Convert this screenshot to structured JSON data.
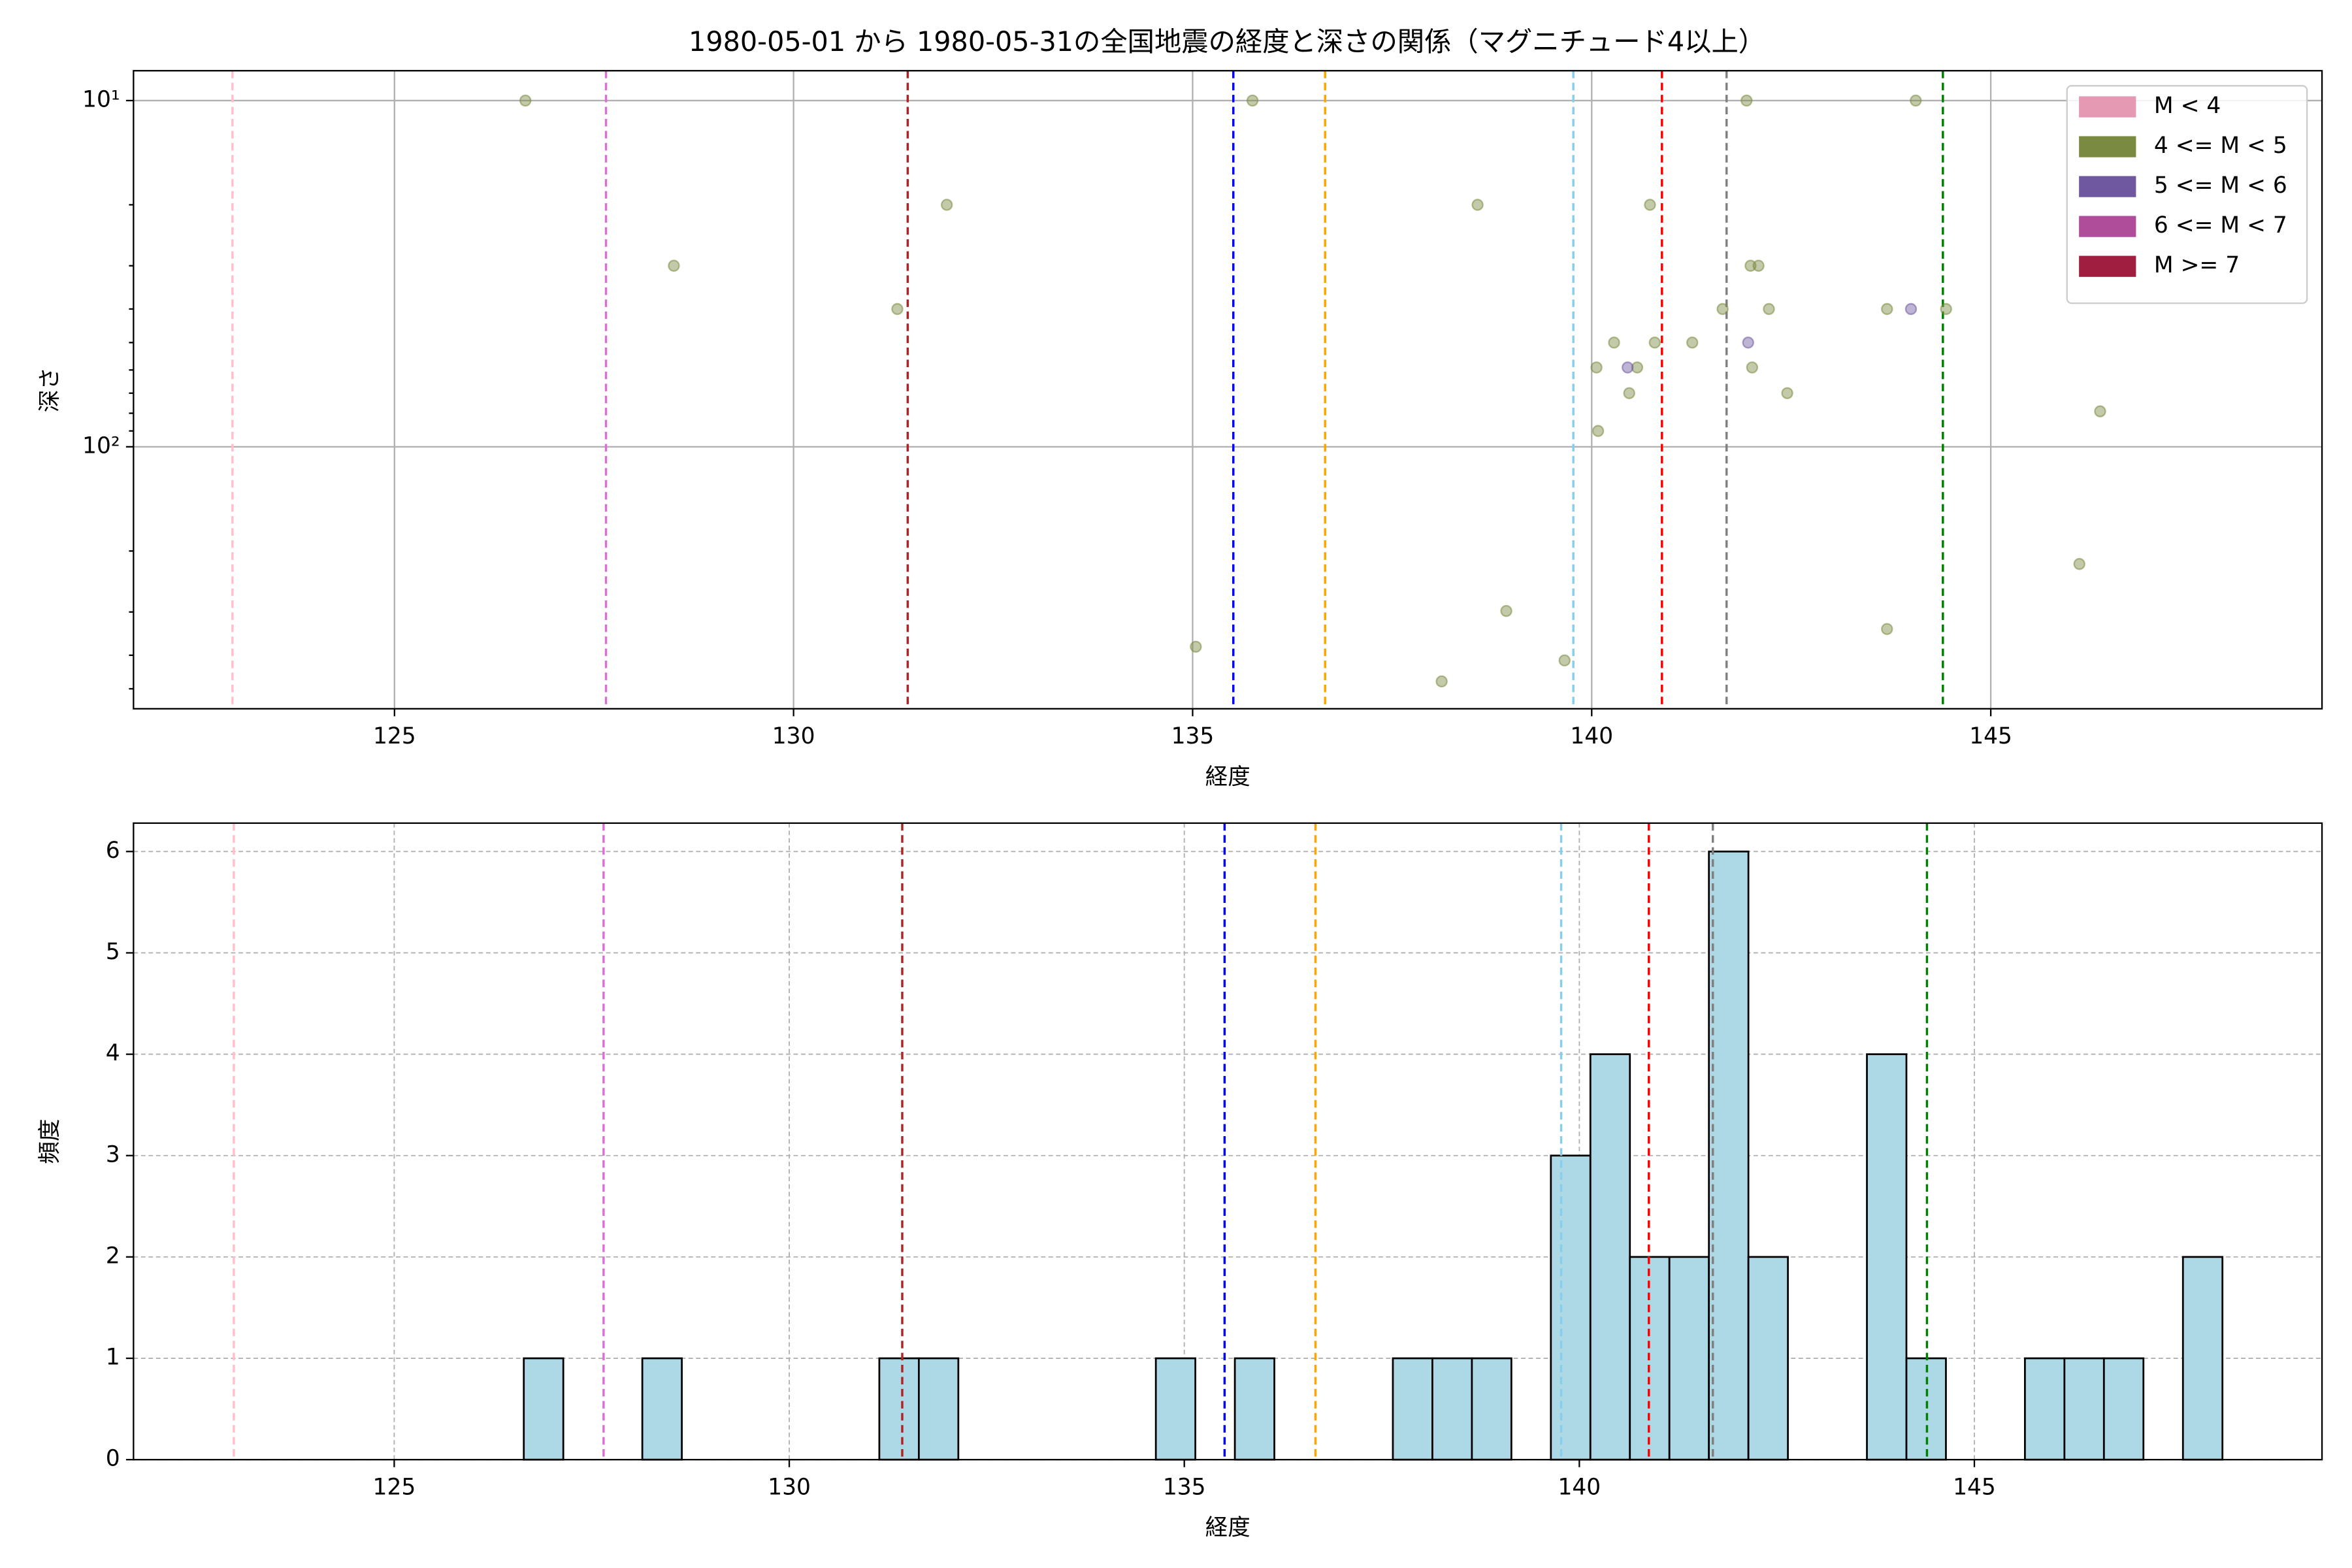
{
  "chart_data": [
    {
      "type": "scatter",
      "title": "1980-05-01 から 1980-05-31の全国地震の経度と深さの関係（マグニチュード4以上）",
      "xlabel": "経度",
      "ylabel": "深さ",
      "xlim": [
        121.73,
        149.15
      ],
      "xticks": [
        125,
        130,
        135,
        140,
        145
      ],
      "ylim": [
        8.2,
        571
      ],
      "yscale": "log",
      "yinverted": true,
      "yticks": [
        {
          "value": 10,
          "label": "10¹"
        },
        {
          "value": 100,
          "label": "10²"
        }
      ],
      "yminor_ticks": [
        20,
        30,
        40,
        50,
        60,
        70,
        80,
        90,
        200,
        300,
        400,
        500
      ],
      "grid": true,
      "legend": "upper right",
      "series": [
        {
          "name": "M < 4",
          "color": "#e699b2",
          "x": [],
          "y": []
        },
        {
          "name": "4 <= M < 5",
          "color": "#7a8a40",
          "x": [
            126.64,
            128.5,
            131.92,
            131.3,
            135.04,
            135.75,
            138.12,
            138.57,
            138.93,
            139.66,
            140.06,
            140.08,
            140.28,
            140.47,
            140.57,
            140.73,
            140.79,
            141.26,
            141.64,
            141.94,
            141.99,
            142.09,
            142.01,
            142.22,
            142.45,
            143.7,
            143.7,
            144.06,
            144.44,
            146.11,
            146.37
          ],
          "y": [
            10,
            30,
            20,
            40,
            378,
            10,
            476,
            20,
            298,
            414,
            59,
            90,
            50,
            70,
            59,
            20,
            50,
            50,
            40,
            10,
            30,
            30,
            59,
            40,
            70,
            40,
            336,
            10,
            40,
            218,
            79
          ]
        },
        {
          "name": "5 <= M < 6",
          "color": "#6f58a0",
          "x": [
            140.45,
            141.96,
            144.0
          ],
          "y": [
            59,
            50,
            40
          ]
        },
        {
          "name": "6 <= M < 7",
          "color": "#b04d9a",
          "x": [],
          "y": []
        },
        {
          "name": "M >= 7",
          "color": "#a01e40",
          "x": [],
          "y": []
        }
      ],
      "vlines": [
        {
          "x": 122.97,
          "color": "pink"
        },
        {
          "x": 127.65,
          "color": "orchid"
        },
        {
          "x": 131.43,
          "color": "firebrick"
        },
        {
          "x": 135.51,
          "color": "blue"
        },
        {
          "x": 136.66,
          "color": "orange"
        },
        {
          "x": 139.77,
          "color": "skyblue"
        },
        {
          "x": 140.88,
          "color": "red"
        },
        {
          "x": 141.69,
          "color": "gray"
        },
        {
          "x": 144.4,
          "color": "green"
        }
      ]
    },
    {
      "type": "histogram",
      "xlabel": "経度",
      "ylabel": "頻度",
      "color": "#add8e6",
      "xlim": [
        121.7,
        149.4
      ],
      "xticks": [
        125,
        130,
        135,
        140,
        145
      ],
      "ylim": [
        0,
        6.28
      ],
      "yticks": [
        0,
        1,
        2,
        3,
        4,
        5,
        6
      ],
      "grid": true,
      "bins": [
        126.64,
        127.14,
        127.64,
        128.14,
        128.64,
        129.14,
        129.64,
        130.14,
        130.64,
        131.14,
        131.64,
        132.14,
        132.64,
        133.14,
        133.64,
        134.14,
        134.64,
        135.14,
        135.64,
        136.14,
        136.64,
        137.14,
        137.64,
        138.14,
        138.64,
        139.14,
        139.64,
        140.14,
        140.64,
        141.14,
        141.64,
        142.14,
        142.64,
        143.14,
        143.64,
        144.14,
        144.64,
        145.14,
        145.64,
        146.14,
        146.64,
        147.14,
        147.64,
        148.14
      ],
      "counts": [
        1,
        0,
        0,
        1,
        0,
        0,
        0,
        0,
        0,
        1,
        1,
        0,
        0,
        0,
        0,
        0,
        1,
        0,
        1,
        0,
        0,
        0,
        1,
        1,
        1,
        0,
        3,
        4,
        2,
        2,
        6,
        2,
        0,
        0,
        4,
        1,
        0,
        0,
        1,
        1,
        1,
        0,
        2
      ],
      "vlines": [
        {
          "x": 122.97,
          "color": "pink"
        },
        {
          "x": 127.65,
          "color": "orchid"
        },
        {
          "x": 131.43,
          "color": "firebrick"
        },
        {
          "x": 135.51,
          "color": "blue"
        },
        {
          "x": 136.66,
          "color": "orange"
        },
        {
          "x": 139.77,
          "color": "skyblue"
        },
        {
          "x": 140.88,
          "color": "red"
        },
        {
          "x": 141.69,
          "color": "gray"
        },
        {
          "x": 144.4,
          "color": "green"
        }
      ]
    }
  ]
}
